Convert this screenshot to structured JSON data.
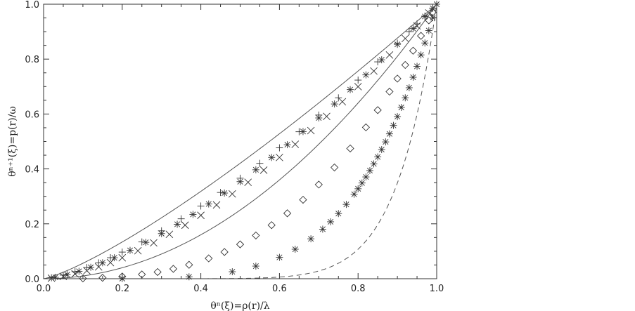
{
  "chart_data": {
    "type": "scatter",
    "title": "",
    "xlabel": "θⁿ(ξ)=ρ(r)/λ",
    "ylabel": "θⁿ⁺¹(ξ)=p(r)/ω",
    "xlim": [
      0,
      1
    ],
    "ylim": [
      0,
      1
    ],
    "xticks": [
      "0.0",
      "0.2",
      "0.4",
      "0.6",
      "0.8",
      "1.0"
    ],
    "yticks": [
      "0.0",
      "0.2",
      "0.4",
      "0.6",
      "0.8",
      "1.0"
    ],
    "grid": false,
    "series": [
      {
        "marker": "plus",
        "line": "none",
        "exponent": 1.45,
        "x": [
          0.02,
          0.05,
          0.08,
          0.11,
          0.14,
          0.17,
          0.2,
          0.25,
          0.3,
          0.35,
          0.4,
          0.45,
          0.5,
          0.55,
          0.6,
          0.65,
          0.7,
          0.75,
          0.8,
          0.85,
          0.9,
          0.93,
          0.95,
          0.97,
          0.99
        ]
      },
      {
        "marker": "asterisk",
        "line": "none",
        "exponent": 1.5,
        "x": [
          0.03,
          0.06,
          0.09,
          0.12,
          0.15,
          0.18,
          0.22,
          0.26,
          0.3,
          0.34,
          0.38,
          0.42,
          0.46,
          0.5,
          0.54,
          0.58,
          0.62,
          0.66,
          0.7,
          0.74,
          0.78,
          0.82,
          0.86,
          0.9,
          0.94,
          0.97,
          0.99
        ]
      },
      {
        "marker": "cross",
        "line": "none",
        "exponent": 1.6,
        "x": [
          0.02,
          0.05,
          0.08,
          0.11,
          0.14,
          0.17,
          0.2,
          0.24,
          0.28,
          0.32,
          0.36,
          0.4,
          0.44,
          0.48,
          0.52,
          0.56,
          0.6,
          0.64,
          0.68,
          0.72,
          0.76,
          0.8,
          0.84,
          0.88,
          0.92,
          0.95,
          0.98
        ]
      },
      {
        "marker": "diamond",
        "line": "none",
        "exponent": 3.0,
        "x": [
          0.1,
          0.15,
          0.2,
          0.25,
          0.29,
          0.33,
          0.37,
          0.42,
          0.46,
          0.5,
          0.54,
          0.58,
          0.62,
          0.66,
          0.7,
          0.74,
          0.78,
          0.82,
          0.85,
          0.88,
          0.9,
          0.92,
          0.94,
          0.96,
          0.98,
          0.99
        ]
      },
      {
        "marker": "asterisk",
        "line": "none",
        "exponent": 5.0,
        "x": [
          0.2,
          0.37,
          0.48,
          0.54,
          0.6,
          0.64,
          0.68,
          0.71,
          0.73,
          0.75,
          0.77,
          0.79,
          0.8,
          0.81,
          0.82,
          0.83,
          0.84,
          0.85,
          0.86,
          0.87,
          0.88,
          0.89,
          0.9,
          0.91,
          0.92,
          0.93,
          0.94,
          0.95,
          0.96,
          0.97,
          0.98,
          0.99,
          1.0
        ]
      },
      {
        "marker": "none",
        "line": "solid",
        "exponent": 1.25
      },
      {
        "marker": "none",
        "line": "solid",
        "exponent": 2.0
      },
      {
        "marker": "none",
        "line": "dashed",
        "exponent": 10.0
      }
    ]
  }
}
